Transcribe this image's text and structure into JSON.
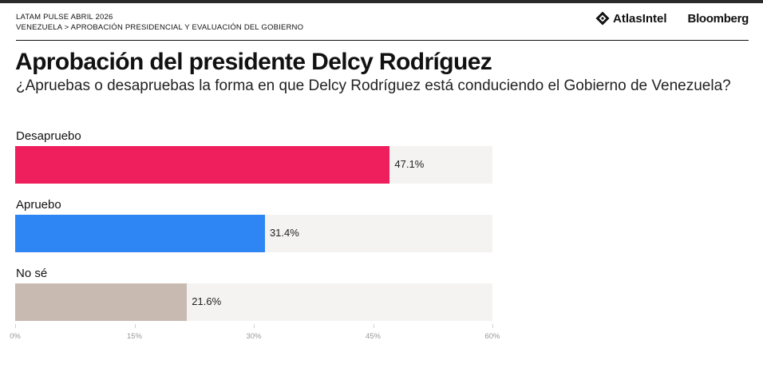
{
  "header": {
    "kicker": "LATAM PULSE ABRIL 2026",
    "breadcrumb": "VENEZUELA > APROBACIÓN PRESIDENCIAL Y EVALUACIÓN DEL GOBIERNO",
    "logo_atlas": "AtlasIntel",
    "logo_bloomberg": "Bloomberg"
  },
  "chart_data": {
    "type": "bar",
    "orientation": "horizontal",
    "title": "Aprobación del presidente Delcy Rodríguez",
    "subtitle": "¿Apruebas o desapruebas la forma en que Delcy Rodríguez está conduciendo el Gobierno de Venezuela?",
    "categories": [
      "Desapruebo",
      "Apruebo",
      "No sé"
    ],
    "values": [
      47.1,
      31.4,
      21.6
    ],
    "value_labels": [
      "47.1%",
      "31.4%",
      "21.6%"
    ],
    "colors": [
      "#ee1f5c",
      "#2e86f5",
      "#c8bab1"
    ],
    "xlim": [
      0,
      60
    ],
    "ticks": [
      0,
      15,
      30,
      45,
      60
    ],
    "tick_labels": [
      "0%",
      "15%",
      "30%",
      "45%",
      "60%"
    ],
    "xlabel": "",
    "ylabel": ""
  }
}
